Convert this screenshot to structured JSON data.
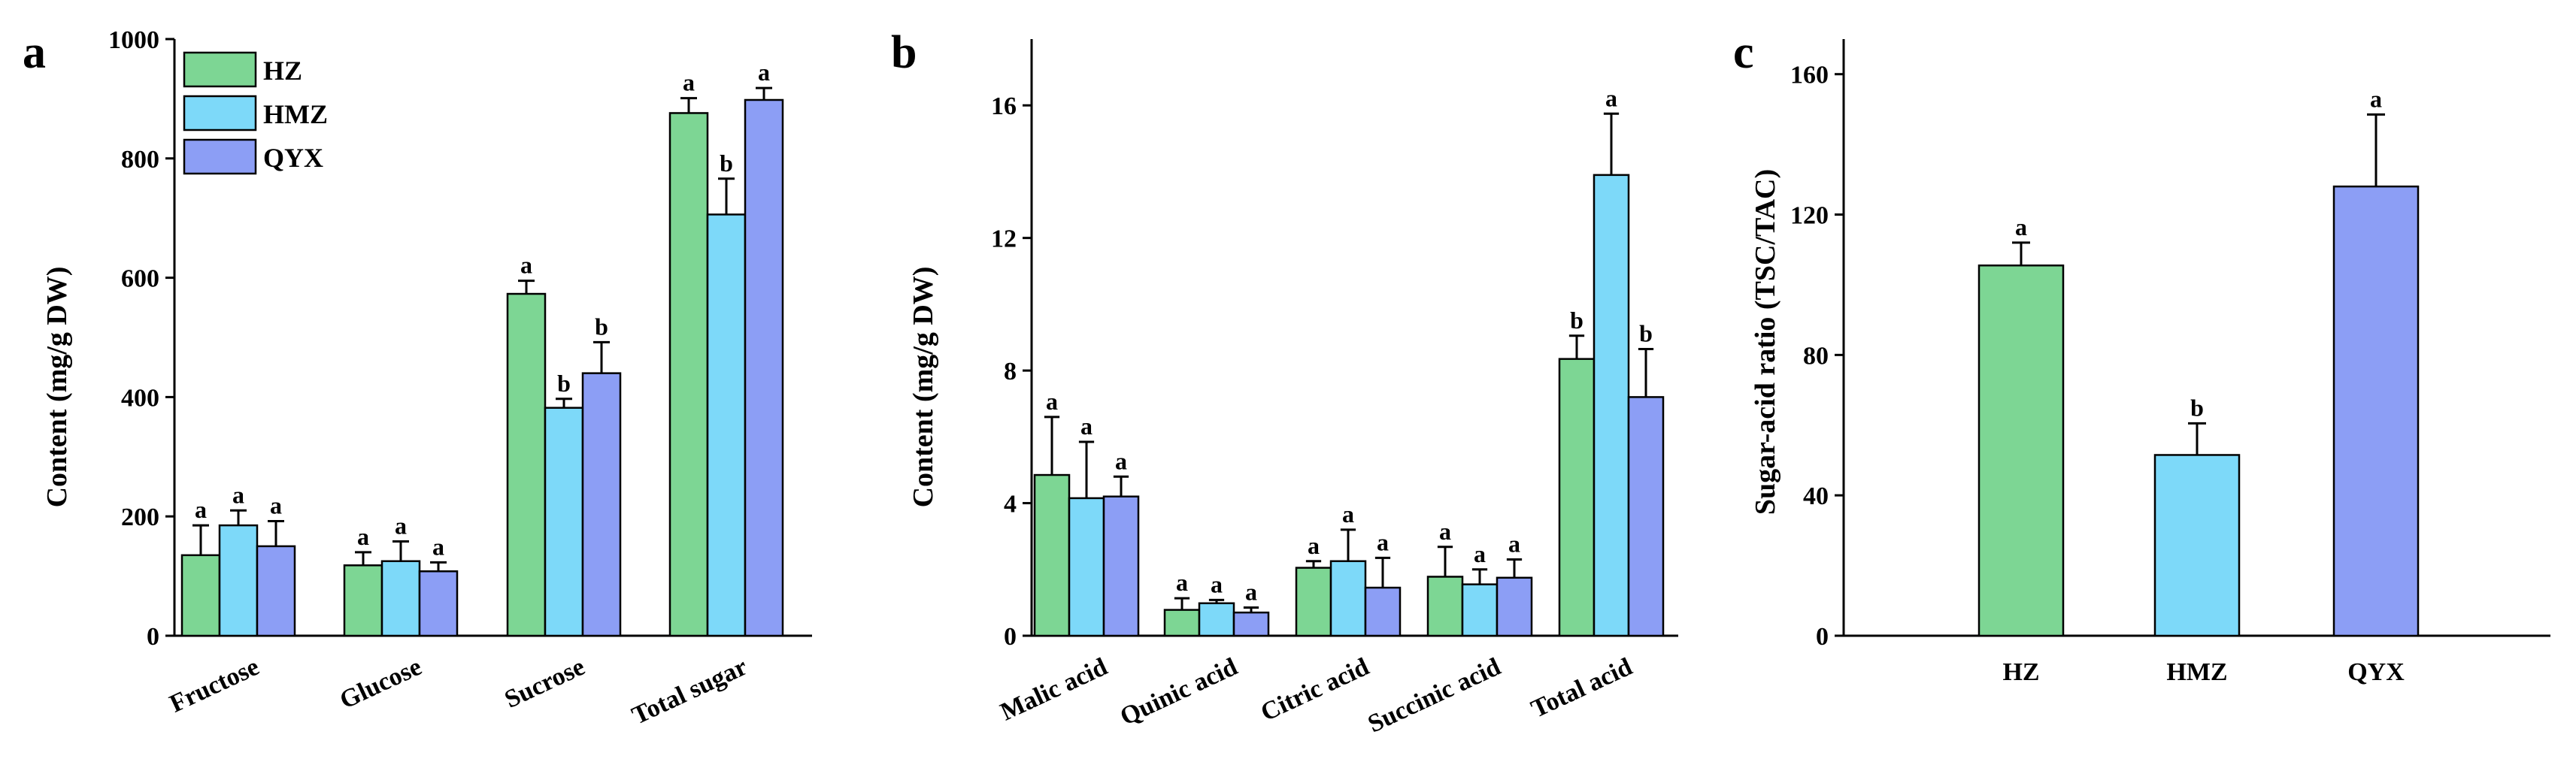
{
  "colors": {
    "HZ": "#7dd694",
    "HMZ": "#7dd9f9",
    "QYX": "#8c9ef5"
  },
  "chart_data": [
    {
      "panel": "a",
      "type": "bar",
      "ylabel": "Content (mg/g DW)",
      "xlabel": "",
      "ylim": [
        0,
        1000
      ],
      "yticks": [
        0,
        200,
        400,
        600,
        800,
        1000
      ],
      "categories": [
        "Fructose",
        "Glucose",
        "Sucrose",
        "Total sugar"
      ],
      "legend": [
        "HZ",
        "HMZ",
        "QYX"
      ],
      "legend_position": "top-left",
      "series": [
        {
          "name": "HZ",
          "values": [
            135,
            118,
            573,
            876
          ],
          "errors": [
            50,
            22,
            22,
            25
          ],
          "sig": [
            "a",
            "a",
            "a",
            "a"
          ]
        },
        {
          "name": "HMZ",
          "values": [
            185,
            125,
            382,
            706
          ],
          "errors": [
            25,
            33,
            15,
            60
          ],
          "sig": [
            "a",
            "a",
            "b",
            "b"
          ]
        },
        {
          "name": "QYX",
          "values": [
            150,
            108,
            440,
            898
          ],
          "errors": [
            42,
            15,
            52,
            20
          ],
          "sig": [
            "a",
            "a",
            "b",
            "a"
          ]
        }
      ]
    },
    {
      "panel": "b",
      "type": "bar",
      "ylabel": "Content (mg/g DW)",
      "xlabel": "",
      "ylim": [
        0,
        18
      ],
      "yticks": [
        0,
        4,
        8,
        12,
        16
      ],
      "categories": [
        "Malic acid",
        "Quinic acid",
        "Citric acid",
        "Succinic acid",
        "Total acid"
      ],
      "series": [
        {
          "name": "HZ",
          "values": [
            4.85,
            0.78,
            2.05,
            1.78,
            8.35
          ],
          "errors": [
            1.75,
            0.35,
            0.2,
            0.9,
            0.7
          ],
          "sig": [
            "a",
            "a",
            "a",
            "a",
            "b"
          ]
        },
        {
          "name": "HMZ",
          "values": [
            4.15,
            0.98,
            2.25,
            1.55,
            13.9
          ],
          "errors": [
            1.7,
            0.1,
            0.95,
            0.45,
            1.85
          ],
          "sig": [
            "a",
            "a",
            "a",
            "a",
            "a"
          ]
        },
        {
          "name": "QYX",
          "values": [
            4.2,
            0.7,
            1.45,
            1.75,
            7.2
          ],
          "errors": [
            0.6,
            0.15,
            0.9,
            0.55,
            1.45
          ],
          "sig": [
            "a",
            "a",
            "a",
            "a",
            "b"
          ]
        }
      ]
    },
    {
      "panel": "c",
      "type": "bar",
      "ylabel": "Sugar-acid ratio (TSC/TAC)",
      "xlabel": "",
      "ylim": [
        0,
        170
      ],
      "yticks": [
        0,
        40,
        80,
        120,
        160
      ],
      "categories": [
        "HZ",
        "HMZ",
        "QYX"
      ],
      "series": [
        {
          "name": "ratio",
          "values": [
            105.5,
            51.5,
            128
          ],
          "errors": [
            6.5,
            9,
            20.5
          ],
          "sig": [
            "a",
            "b",
            "a"
          ],
          "colorKeys": [
            "HZ",
            "HMZ",
            "QYX"
          ]
        }
      ]
    }
  ]
}
